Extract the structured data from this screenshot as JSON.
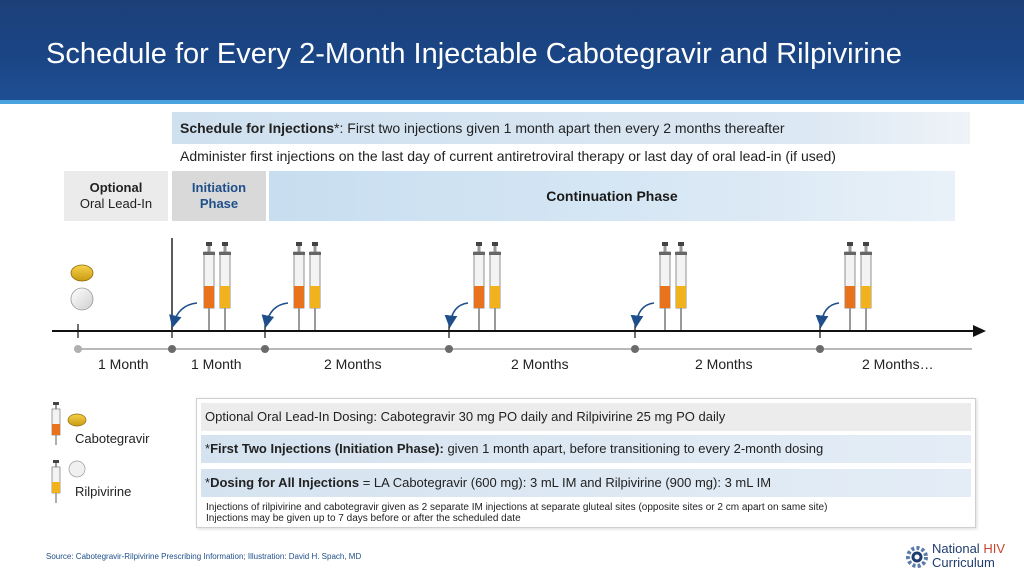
{
  "title": "Schedule for Every 2-Month Injectable Cabotegravir and Rilpivirine",
  "schedule_box": {
    "label": "Schedule for Injections",
    "asterisk": "*",
    "text": ": First two injections given 1 month apart then every 2 months thereafter"
  },
  "administer_text": "Administer first injections on the last day of current antiretroviral therapy or last day of oral lead-in (if used)",
  "phases": {
    "optional_line1": "Optional",
    "optional_line2": "Oral Lead-In",
    "initiation_line1": "Initiation",
    "initiation_line2": "Phase",
    "continuation": "Continuation Phase"
  },
  "intervals": [
    "1 Month",
    "1 Month",
    "2 Months",
    "2 Months",
    "2 Months",
    "2 Months…"
  ],
  "legend": {
    "cabotegravir": "Cabotegravir",
    "rilpivirine": "Rilpivirine"
  },
  "info": {
    "row1": "Optional Oral Lead-In Dosing: Cabotegravir 30 mg PO daily and Rilpivirine 25 mg PO daily",
    "row2_prefix": "*",
    "row2_bold": "First Two Injections (Initiation Phase):",
    "row2_rest": " given 1 month apart, before transitioning to every 2-month dosing",
    "row3_prefix": "*",
    "row3_bold": "Dosing for All Injections",
    "row3_rest": " = LA Cabotegravir (600 mg): 3 mL IM and Rilpivirine (900 mg): 3 mL IM",
    "note1": "Injections of rilpivirine and cabotegravir given as 2 separate IM injections at separate gluteal sites (opposite sites or 2 cm apart on same site)",
    "note2": "Injections may be given up to 7 days before or after the scheduled date"
  },
  "source": "Source: Cabotegravir-Rilpivirine Prescribing Information; Illustration: David H. Spach, MD",
  "logo": {
    "line1_a": "National ",
    "line1_b": "HIV",
    "line2": "Curriculum"
  },
  "colors": {
    "header": "#1d3f78",
    "accent_line": "#4aa3de",
    "cabotegravir": "#e8731c",
    "rilpivirine": "#f2b21e",
    "arrow": "#1f4f8a"
  }
}
